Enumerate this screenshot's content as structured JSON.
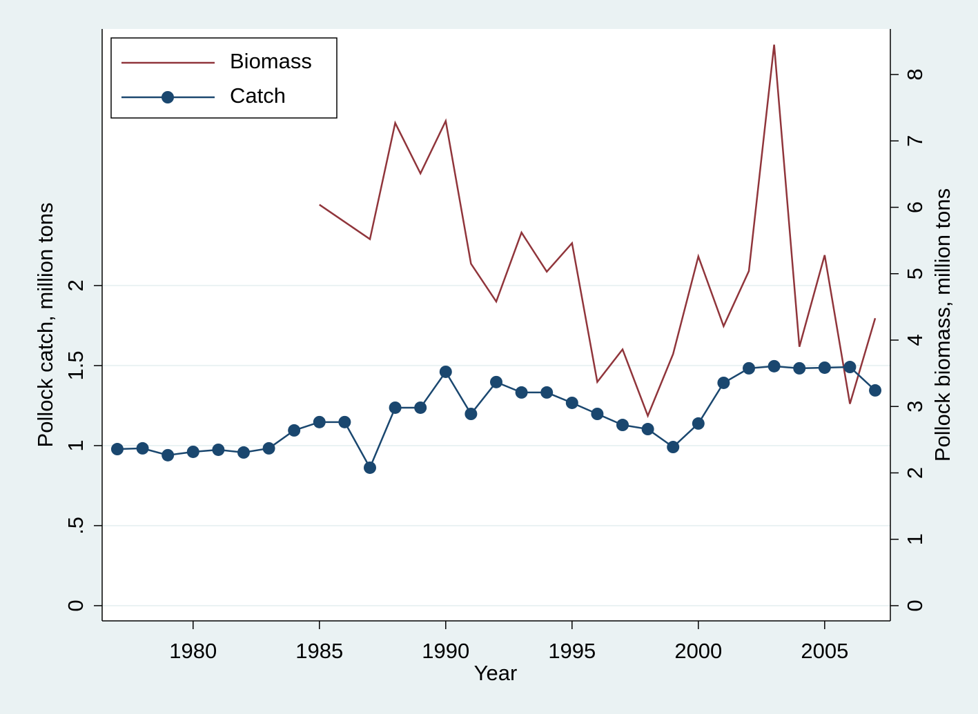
{
  "chart_data": {
    "type": "line",
    "x_label": "Year",
    "y_label": "Pollock catch, million tons",
    "y2_label": "Pollock biomass, million tons",
    "x": [
      1977,
      1978,
      1979,
      1980,
      1981,
      1982,
      1983,
      1984,
      1985,
      1986,
      1987,
      1988,
      1989,
      1990,
      1991,
      1992,
      1993,
      1994,
      1995,
      1996,
      1997,
      1998,
      1999,
      2000,
      2001,
      2002,
      2003,
      2004,
      2005,
      2006,
      2007
    ],
    "series": [
      {
        "name": "Biomass",
        "color": "#90353b",
        "axis": "y2",
        "values": [
          null,
          null,
          null,
          null,
          null,
          null,
          null,
          null,
          6.04,
          5.78,
          5.52,
          7.27,
          6.51,
          7.3,
          5.15,
          4.58,
          5.62,
          5.03,
          5.46,
          3.37,
          3.86,
          2.86,
          3.79,
          5.26,
          4.21,
          5.04,
          8.45,
          3.9,
          5.28,
          3.04,
          4.33
        ]
      },
      {
        "name": "Catch",
        "color": "#1a476f",
        "marker": "circle",
        "values": [
          0.978,
          0.983,
          0.94,
          0.961,
          0.974,
          0.957,
          0.983,
          1.095,
          1.147,
          1.147,
          0.862,
          1.237,
          1.237,
          1.461,
          1.198,
          1.397,
          1.332,
          1.332,
          1.267,
          1.198,
          1.129,
          1.103,
          0.991,
          1.138,
          1.392,
          1.483,
          1.496,
          1.483,
          1.487,
          1.491,
          1.345
        ]
      }
    ],
    "xlim": [
      1976.4,
      2007.6
    ],
    "xticks": [
      1980,
      1985,
      1990,
      1995,
      2000,
      2005
    ],
    "ylim": [
      -0.095,
      3.603
    ],
    "yticks": [
      0,
      {
        "value": 0.5,
        "label": ".5"
      },
      1,
      1.5,
      2
    ],
    "y2lim": [
      -0.229,
      8.686
    ],
    "y2ticks": [
      0,
      1,
      2,
      3,
      4,
      5,
      6,
      7,
      8
    ],
    "grid": true,
    "legend": "top-left"
  }
}
